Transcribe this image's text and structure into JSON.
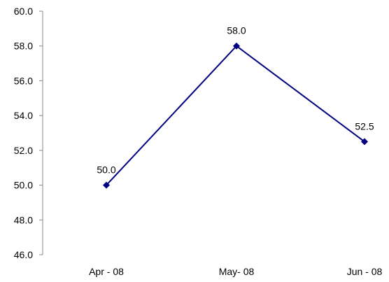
{
  "chart_data": {
    "type": "line",
    "categories": [
      "Apr - 08",
      "May- 08",
      "Jun - 08"
    ],
    "values": [
      50.0,
      58.0,
      52.5
    ],
    "data_labels": [
      "50.0",
      "58.0",
      "52.5"
    ],
    "ylim": [
      46.0,
      60.0
    ],
    "y_ticks": [
      "46.0",
      "48.0",
      "50.0",
      "52.0",
      "54.0",
      "56.0",
      "58.0",
      "60.0"
    ],
    "grid": false,
    "legend": "none",
    "line_color": "#000080",
    "marker": "diamond"
  }
}
